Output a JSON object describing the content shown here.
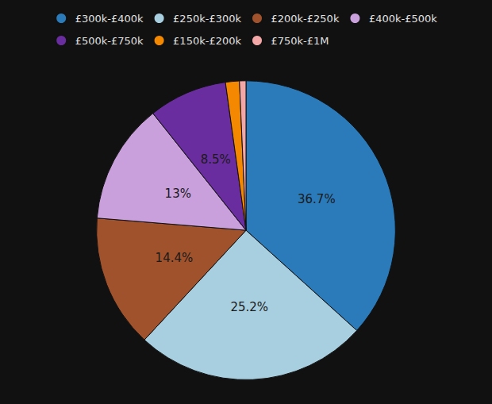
{
  "chart_data": {
    "type": "pie",
    "categories": [
      "£300k-£400k",
      "£250k-£300k",
      "£200k-£250k",
      "£400k-£500k",
      "£500k-£750k",
      "£150k-£200k",
      "£750k-£1M"
    ],
    "values": [
      36.7,
      25.2,
      14.4,
      13.0,
      8.5,
      1.5,
      0.7
    ],
    "value_labels": [
      "36.7%",
      "25.2%",
      "14.4%",
      "13%",
      "8.5%",
      null,
      null
    ],
    "colors": [
      "#2b7bba",
      "#a8cfe0",
      "#a0522d",
      "#c9a0dc",
      "#6a2d9f",
      "#f48800",
      "#f4a7a7"
    ],
    "data_labels": true,
    "legend": "top"
  }
}
